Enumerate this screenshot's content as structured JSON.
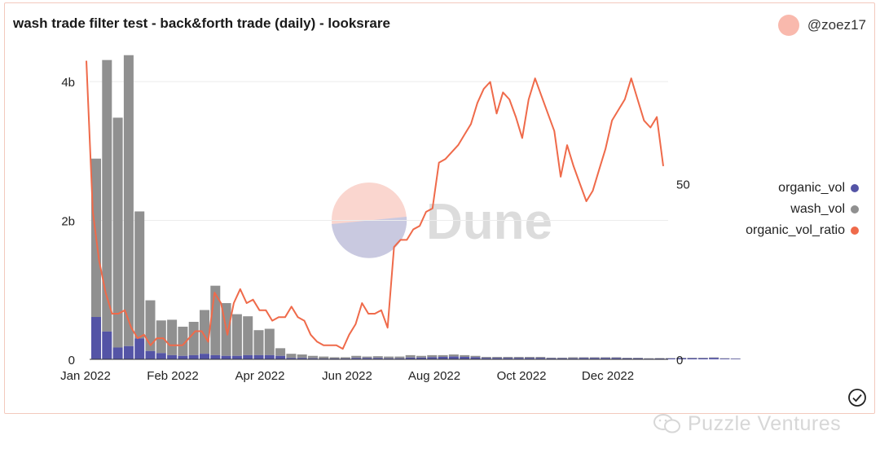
{
  "header": {
    "title": "wash trade filter test - back&forth trade (daily) - looksrare",
    "author": "@zoez17"
  },
  "watermark": {
    "dune_text": "Dune",
    "footer_text": "Puzzle Ventures"
  },
  "colors": {
    "organic": "#5454a6",
    "wash": "#909090",
    "ratio": "#ef6a4a",
    "grid": "#ececec"
  },
  "chart_data": {
    "type": "bar",
    "title": "wash trade filter test - back&forth trade (daily) - looksrare",
    "xlabel": "",
    "ylabel": "",
    "grid": true,
    "legend_position": "right",
    "x_tick_labels": [
      "Jan 2022",
      "Feb 2022",
      "Apr 2022",
      "Jun 2022",
      "Aug 2022",
      "Oct 2022",
      "Dec 2022"
    ],
    "y_left": {
      "ticks": [
        "0",
        "2b",
        "4b"
      ],
      "range": [
        0,
        4.4
      ]
    },
    "y_right": {
      "ticks": [
        "0",
        "50"
      ],
      "range": [
        0,
        87
      ]
    },
    "series": [
      {
        "name": "organic_vol",
        "type": "bar",
        "axis": "left",
        "values": [
          0.61,
          0.4,
          0.17,
          0.19,
          0.3,
          0.12,
          0.09,
          0.06,
          0.05,
          0.06,
          0.08,
          0.06,
          0.05,
          0.05,
          0.06,
          0.06,
          0.06,
          0.05,
          0.02,
          0.02,
          0.015,
          0.012,
          0.012,
          0.012,
          0.02,
          0.02,
          0.02,
          0.015,
          0.015,
          0.025,
          0.025,
          0.03,
          0.035,
          0.04,
          0.035,
          0.03,
          0.02,
          0.02,
          0.02,
          0.02,
          0.02,
          0.02,
          0.015,
          0.015,
          0.015,
          0.02,
          0.02,
          0.02,
          0.02,
          0.015,
          0.015,
          0.01,
          0.012,
          0.012,
          0.015,
          0.015,
          0.015,
          0.02,
          0.01,
          0.008
        ]
      },
      {
        "name": "wash_vol",
        "type": "bar",
        "axis": "left",
        "values": [
          2.28,
          3.91,
          3.31,
          4.19,
          1.83,
          0.73,
          0.47,
          0.51,
          0.42,
          0.48,
          0.63,
          1.0,
          0.76,
          0.6,
          0.56,
          0.36,
          0.38,
          0.11,
          0.06,
          0.05,
          0.035,
          0.028,
          0.018,
          0.018,
          0.03,
          0.02,
          0.025,
          0.025,
          0.025,
          0.035,
          0.025,
          0.03,
          0.025,
          0.03,
          0.025,
          0.02,
          0.015,
          0.015,
          0.015,
          0.015,
          0.015,
          0.015,
          0.01,
          0.01,
          0.015,
          0.01,
          0.01,
          0.01,
          0.01,
          0.008,
          0.008,
          0.006,
          0.006,
          0.006,
          0.008,
          0.008,
          0.008,
          0.008,
          0.006,
          0.005
        ]
      },
      {
        "name": "organic_vol_ratio",
        "type": "line",
        "axis": "right",
        "x": [
          0,
          1,
          2,
          3,
          4,
          5,
          6,
          7,
          8,
          9,
          10,
          11,
          12,
          13,
          14,
          15,
          16,
          17,
          18,
          19,
          20,
          21,
          22,
          23,
          24,
          25,
          26,
          27,
          28,
          29,
          30,
          31,
          32,
          33,
          34,
          35,
          36,
          37,
          38,
          39,
          40,
          41,
          42,
          43,
          44,
          45,
          46,
          47,
          48,
          49,
          50,
          51,
          52,
          53,
          54,
          55,
          56,
          57,
          58,
          59,
          60,
          61,
          62,
          63,
          64,
          65,
          66,
          67,
          68,
          69,
          70,
          71,
          72,
          73,
          74,
          75,
          76,
          77,
          78,
          79,
          80,
          81,
          82,
          83,
          84,
          85,
          86,
          87,
          88,
          89,
          90
        ],
        "values": [
          85,
          42,
          28,
          19,
          13,
          13,
          14,
          9,
          6,
          7,
          4,
          6,
          6,
          4,
          4,
          4,
          6,
          8,
          8,
          5,
          19,
          16,
          7,
          16,
          20,
          16,
          17,
          14,
          14,
          11,
          12,
          12,
          15,
          12,
          11,
          7,
          5,
          4,
          4,
          4,
          3,
          7,
          10,
          16,
          13,
          13,
          14,
          9,
          32,
          34,
          34,
          37,
          38,
          42,
          43,
          56,
          57,
          59,
          61,
          64,
          67,
          73,
          77,
          79,
          70,
          76,
          74,
          69,
          63,
          74,
          80,
          75,
          70,
          65,
          52,
          61,
          55,
          50,
          45,
          48,
          54,
          60,
          68,
          71,
          74,
          80,
          74,
          68,
          66,
          69,
          55
        ]
      }
    ]
  }
}
